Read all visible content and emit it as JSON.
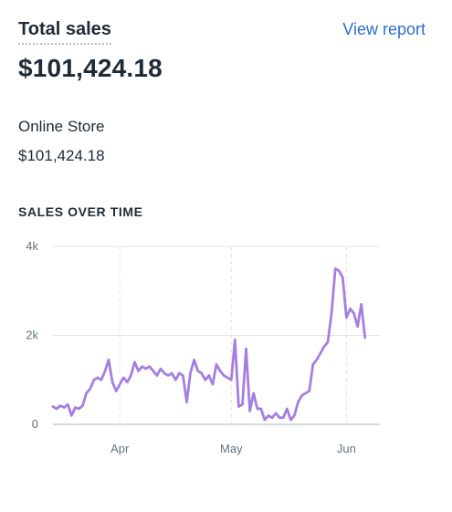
{
  "header": {
    "title": "Total sales",
    "view_report": "View report"
  },
  "total": {
    "value": "$101,424.18"
  },
  "channel": {
    "name": "Online Store",
    "value": "$101,424.18"
  },
  "section": {
    "heading": "SALES OVER TIME"
  },
  "colors": {
    "line": "#a57fe0",
    "grid": "#dfe3e8",
    "link": "#2c6ecb"
  },
  "chart_data": {
    "type": "line",
    "ylim": [
      0,
      4000
    ],
    "yticks": [
      {
        "value": 0,
        "label": "0"
      },
      {
        "value": 2000,
        "label": "2k"
      },
      {
        "value": 4000,
        "label": "4k"
      }
    ],
    "xticks": [
      {
        "label": "Apr",
        "index": 18
      },
      {
        "label": "May",
        "index": 48
      },
      {
        "label": "Jun",
        "index": 79
      }
    ],
    "xdomain": [
      0,
      88
    ],
    "grid": true,
    "legend": "none",
    "values": [
      400,
      350,
      420,
      380,
      450,
      200,
      380,
      350,
      420,
      700,
      800,
      1000,
      1050,
      1000,
      1200,
      1450,
      950,
      750,
      900,
      1050,
      950,
      1100,
      1400,
      1200,
      1300,
      1250,
      1300,
      1200,
      1100,
      1250,
      1150,
      1100,
      1150,
      1000,
      1150,
      1100,
      500,
      1150,
      1450,
      1200,
      1150,
      1000,
      1100,
      900,
      1350,
      1200,
      1100,
      1050,
      1000,
      1900,
      400,
      450,
      1700,
      300,
      700,
      350,
      350,
      100,
      200,
      150,
      250,
      150,
      150,
      350,
      100,
      200,
      500,
      650,
      700,
      750,
      1350,
      1450,
      1600,
      1750,
      1850,
      2500,
      3500,
      3450,
      3300,
      2400,
      2600,
      2500,
      2200,
      2700,
      1950
    ]
  }
}
